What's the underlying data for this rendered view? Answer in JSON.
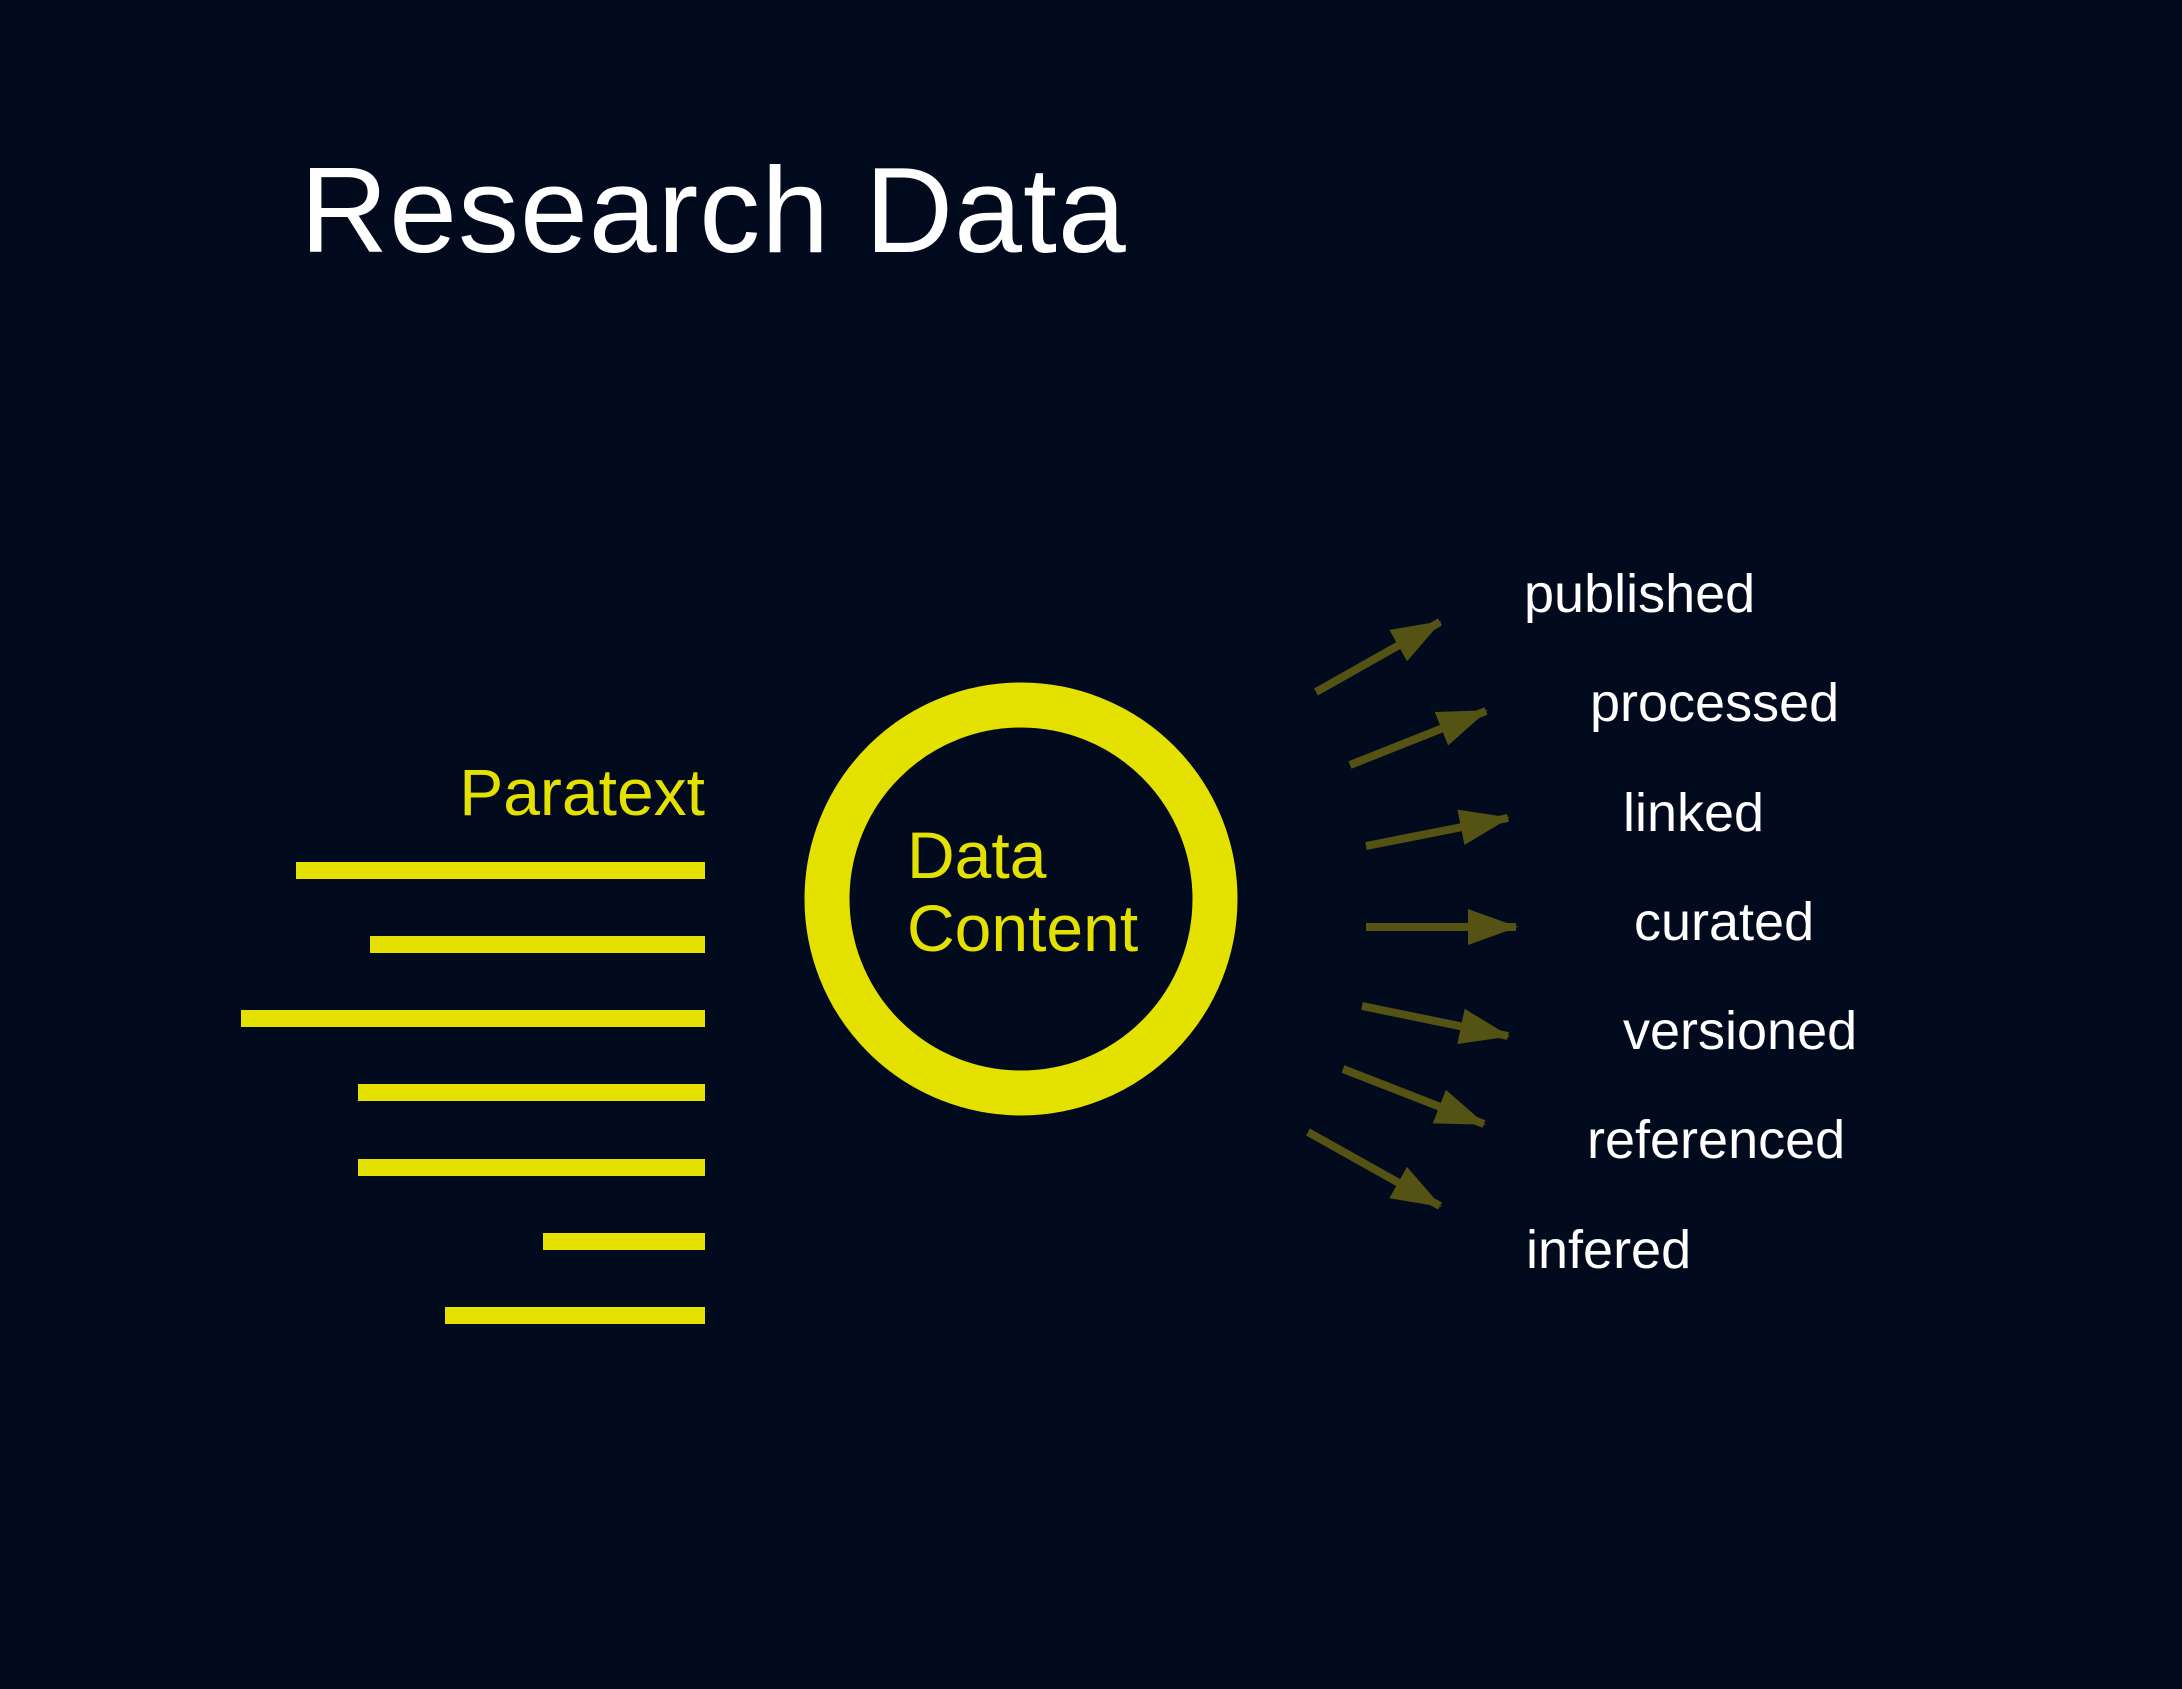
{
  "title": "Research Data",
  "colors": {
    "background": "#020a1d",
    "accent": "#e4e000",
    "arrow": "#545314",
    "label": "#ffffff"
  },
  "paratext": {
    "label": "Paratext"
  },
  "core": {
    "line1": "Data",
    "line2": "Content"
  },
  "outputs": [
    "published",
    "processed",
    "linked",
    "curated",
    "versioned",
    "referenced",
    "infered"
  ]
}
